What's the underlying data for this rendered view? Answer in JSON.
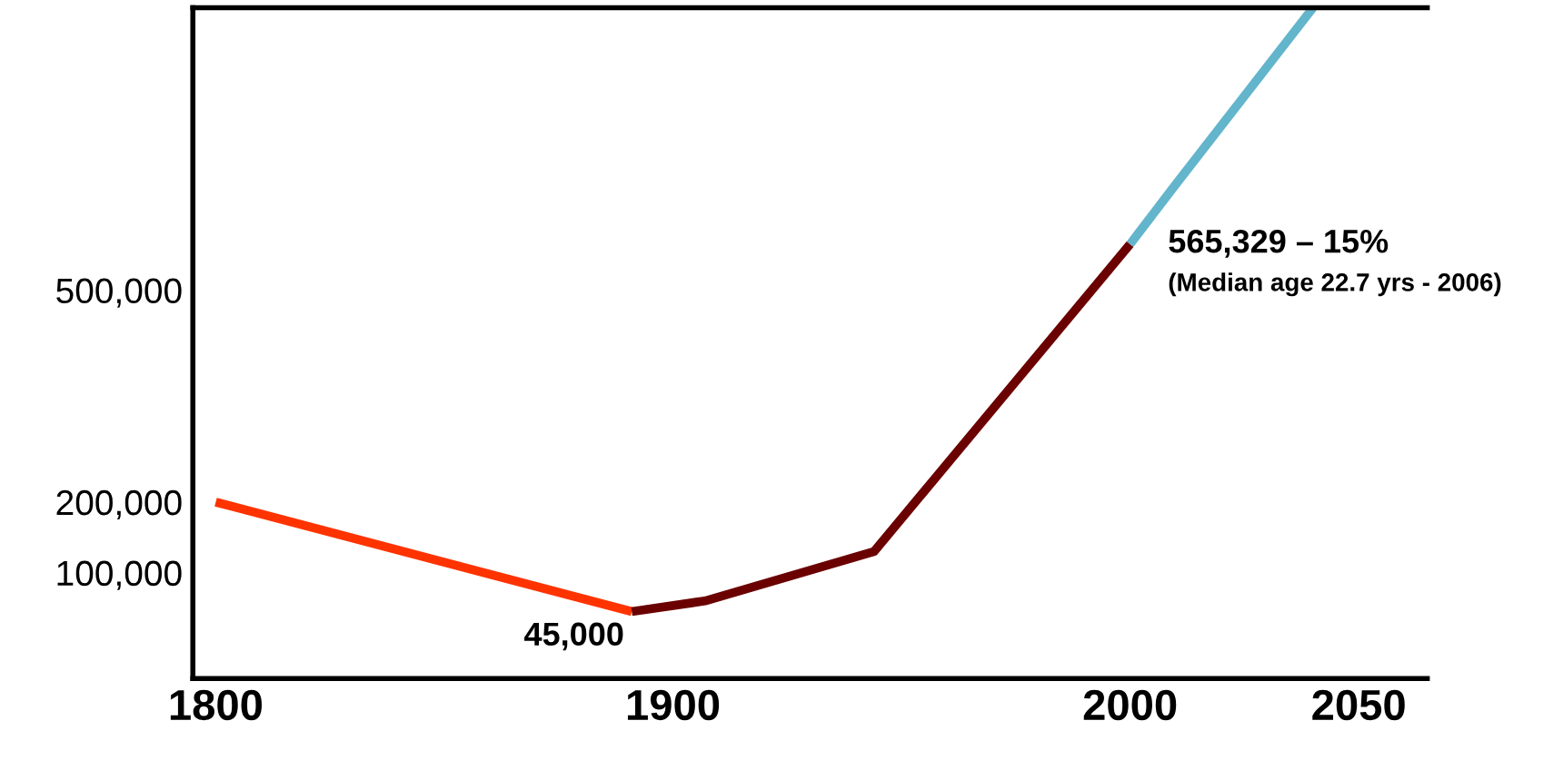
{
  "chart_data": {
    "type": "line",
    "series": [
      {
        "color": "#ff3300",
        "x": [
          1800,
          1891
        ],
        "values": [
          200000,
          45000
        ]
      },
      {
        "color": "#6b0000",
        "x": [
          1891,
          1907,
          1944,
          2000
        ],
        "values": [
          45000,
          60000,
          130000,
          565329
        ]
      },
      {
        "color": "#63b5cc",
        "x": [
          2000,
          2010,
          2040
        ],
        "values": [
          565329,
          650000,
          900000
        ]
      }
    ],
    "xlim": [
      1795,
      2065
    ],
    "xticks": [
      1800,
      1900,
      2000,
      2050
    ],
    "ylim": [
      -50000,
      900000
    ],
    "yticks": [
      {
        "value": 100000,
        "label": "100,000"
      },
      {
        "value": 200000,
        "label": "200,000"
      },
      {
        "value": 500000,
        "label": "500,000"
      }
    ],
    "annotations": [
      {
        "text": "45,000",
        "x": 1891,
        "y": 45000
      },
      {
        "text": "565,329 – 15%",
        "x": 2000,
        "y": 565329
      },
      "(Median age 22.7 yrs - 2006)"
    ],
    "grid": false,
    "legend": false,
    "marker": "none",
    "line_style": "solid"
  }
}
